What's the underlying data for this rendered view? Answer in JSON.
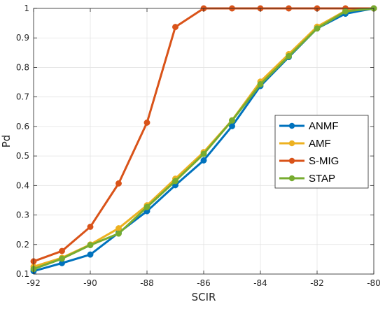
{
  "chart_data": {
    "type": "line",
    "title": "",
    "xlabel": "SCIR",
    "ylabel": "Pd",
    "xlim": [
      -92,
      -80
    ],
    "ylim": [
      0.1,
      1
    ],
    "xticks": [
      -92,
      -90,
      -88,
      -86,
      -84,
      -82,
      -80
    ],
    "yticks": [
      0.1,
      0.2,
      0.3,
      0.4,
      0.5,
      0.6,
      0.7,
      0.8,
      0.9,
      1
    ],
    "ytick_labels": [
      "0.1",
      "0.2",
      "0.3",
      "0.4",
      "0.5",
      "0.6",
      "0.7",
      "0.8",
      "0.9",
      "1"
    ],
    "grid": true,
    "legend_position": "center-right",
    "x": [
      -92,
      -91,
      -90,
      -89,
      -88,
      -87,
      -86,
      -85,
      -84,
      -83,
      -82,
      -81,
      -80
    ],
    "series": [
      {
        "name": "ANMF",
        "color": "#0072BD",
        "values": [
          0.11,
          0.137,
          0.166,
          0.24,
          0.313,
          0.401,
          0.485,
          0.601,
          0.737,
          0.835,
          0.932,
          0.982,
          1.0
        ]
      },
      {
        "name": "AMF",
        "color": "#EDB120",
        "values": [
          0.125,
          0.155,
          0.2,
          0.255,
          0.333,
          0.423,
          0.513,
          0.621,
          0.752,
          0.845,
          0.938,
          0.992,
          1.0
        ]
      },
      {
        "name": "S-MIG",
        "color": "#D95319",
        "values": [
          0.143,
          0.178,
          0.26,
          0.407,
          0.613,
          0.937,
          1.0,
          1.0,
          1.0,
          1.0,
          1.0,
          1.0,
          1.0
        ]
      },
      {
        "name": "STAP",
        "color": "#77AC30",
        "values": [
          0.117,
          0.152,
          0.198,
          0.237,
          0.327,
          0.415,
          0.507,
          0.62,
          0.743,
          0.838,
          0.932,
          0.99,
          1.0
        ]
      }
    ]
  }
}
